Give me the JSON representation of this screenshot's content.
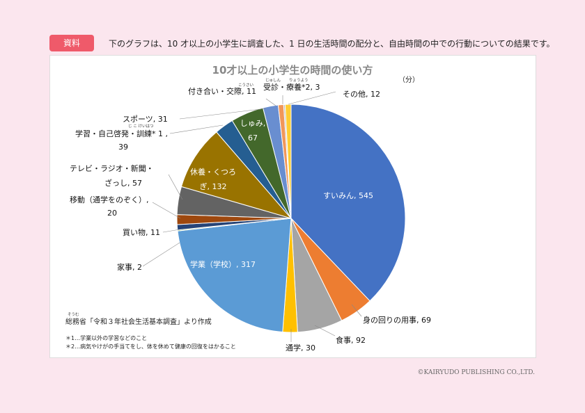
{
  "header": {
    "badge": "資料",
    "description": "下のグラフは、10 才以上の小学生に調査した、1 日の生活時間の配分と、自由時間の中での行動についての結果です。"
  },
  "chart_data": {
    "type": "pie",
    "title": "10才以上の小学生の時間の使い方",
    "unit": "（分）",
    "start_angle_deg": 0,
    "direction": "clockwise",
    "slices": [
      {
        "label": "すいみん, 545",
        "value": 545,
        "color": "#4472c4"
      },
      {
        "label": "身の回りの用事, 69",
        "value": 69,
        "color": "#ed7d31"
      },
      {
        "label": "食事, 92",
        "value": 92,
        "color": "#a5a5a5"
      },
      {
        "label": "通学, 30",
        "value": 30,
        "color": "#ffc000"
      },
      {
        "label": "学業（学校）, 317",
        "value": 317,
        "color": "#5b9bd5"
      },
      {
        "label": "家事, 2",
        "value": 2,
        "color": "#70ad47"
      },
      {
        "label": "買い物, 11",
        "value": 11,
        "color": "#264478"
      },
      {
        "label": "移動（通学をのぞく）, 20",
        "value": 20,
        "color": "#9e480e"
      },
      {
        "label": "テレビ・ラジオ・新聞・ざっし, 57",
        "value": 57,
        "color": "#636363"
      },
      {
        "label": "休養・くつろぎ, 132",
        "value": 132,
        "color": "#997300"
      },
      {
        "label": "学習・自己啓発・訓練*1, 39",
        "value": 39,
        "color": "#255e91"
      },
      {
        "label": "しゅみ, 67",
        "value": 67,
        "color": "#43682b"
      },
      {
        "label": "スポーツ, 31",
        "value": 31,
        "color": "#698ed0"
      },
      {
        "label": "付き合い・交際, 11",
        "value": 11,
        "color": "#f1975a"
      },
      {
        "label": "受診・療養*2, 3",
        "value": 3,
        "color": "#b7b7b7"
      },
      {
        "label": "その他, 12",
        "value": 12,
        "color": "#ffcd33"
      }
    ],
    "label_texts": {
      "sleep": "すいみん, 545",
      "personal_care": "身の回りの用事, 69",
      "meals": "食事, 92",
      "commute": "通学, 30",
      "school": "学業（学校）, 317",
      "housework": "家事, 2",
      "shopping": "買い物, 11",
      "moving_1": "移動（通学をのぞく）,",
      "moving_2": "20",
      "media_1": "テレビ・ラジオ・新聞・",
      "media_2": "ざっし, 57",
      "rest_1": "休養・くつろ",
      "rest_2": "ぎ, 132",
      "study_1": "学習・自己啓発・訓練* 1 ,",
      "study_2": "39",
      "hobby_1": "しゅみ,",
      "hobby_2": "67",
      "sports": "スポーツ, 31",
      "social": "付き合い・交際, 11",
      "medical": "受診・療養*2, 3",
      "other": "その他, 12"
    },
    "ruby": {
      "keihatsu": "じ こ けいはつ",
      "kousai": "こうさい",
      "jushin": "じゅしん",
      "ryouyou": "りょうよう",
      "soumu": "そうむ"
    }
  },
  "source": "総務省「令和３年社会生活基本調査」より作成",
  "notes": [
    "＊1…学業以外の学習などのこと",
    "＊2…病気やけがの手当てをし、体を休めて健康の回復をはかること"
  ],
  "copyright": "©KAIRYUDO PUBLISHING CO.,LTD."
}
